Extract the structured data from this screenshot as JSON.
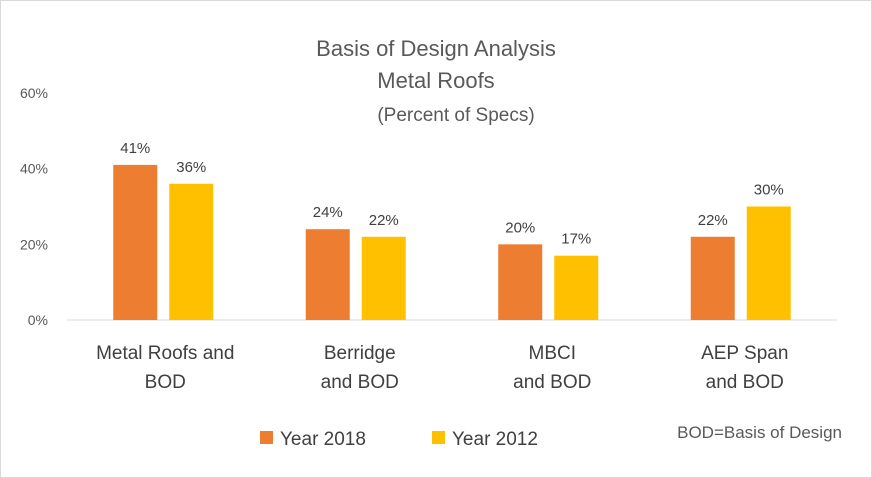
{
  "chart_data": {
    "type": "bar",
    "title_lines": [
      "Basis of Design Analysis",
      "Metal Roofs"
    ],
    "subtitle": "(Percent of Specs)",
    "categories": [
      [
        "Metal Roofs and",
        "BOD"
      ],
      [
        "Berridge",
        "and BOD"
      ],
      [
        "MBCI",
        "and BOD"
      ],
      [
        "AEP Span",
        "and BOD"
      ]
    ],
    "series": [
      {
        "name": "Year 2018",
        "color": "#ED7D31",
        "values": [
          41,
          24,
          20,
          22
        ],
        "labels": [
          "41%",
          "24%",
          "20%",
          "22%"
        ]
      },
      {
        "name": "Year 2012",
        "color": "#FFC000",
        "values": [
          36,
          22,
          17,
          30
        ],
        "labels": [
          "36%",
          "22%",
          "17%",
          "30%"
        ]
      }
    ],
    "ylim": [
      0,
      60
    ],
    "yticks": [
      0,
      20,
      40,
      60
    ],
    "ytick_labels": [
      "0%",
      "20%",
      "40%",
      "60%"
    ],
    "legend_position": "bottom",
    "grid": false,
    "note": "BOD=Basis of Design"
  }
}
